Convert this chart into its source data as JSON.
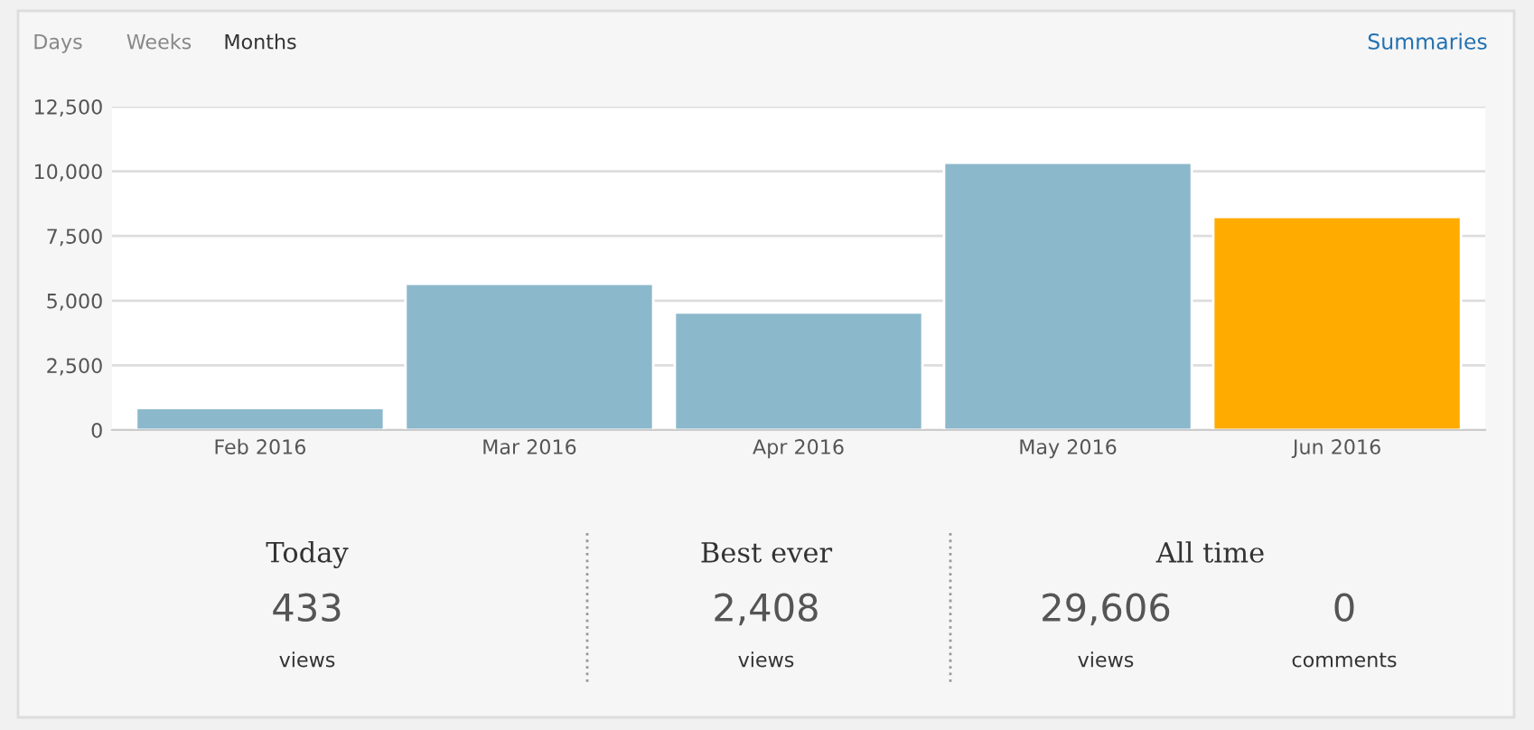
{
  "chart_data": {
    "type": "bar",
    "categories": [
      "Feb 2016",
      "Mar 2016",
      "Apr 2016",
      "May 2016",
      "Jun 2016"
    ],
    "values": [
      850,
      5650,
      4540,
      10330,
      8240
    ],
    "colors": [
      "#8cb8cc",
      "#8cb8cc",
      "#8cb8cc",
      "#8cb8cc",
      "#ffab00"
    ],
    "ylim": [
      0,
      12500
    ],
    "yticks": [
      {
        "value": 0,
        "label": "0"
      },
      {
        "value": 2500,
        "label": "2,500"
      },
      {
        "value": 5000,
        "label": "5,000"
      },
      {
        "value": 7500,
        "label": "7,500"
      },
      {
        "value": 10000,
        "label": "10,000"
      },
      {
        "value": 12500,
        "label": "12,500"
      }
    ],
    "grid": "y",
    "annotations": [
      "Days",
      "Weeks",
      "Months",
      "Summaries",
      "Today",
      "433",
      "views",
      "Best ever",
      "2,408",
      "views",
      "All time",
      "29,606",
      "views",
      "0",
      "comments"
    ]
  }
}
